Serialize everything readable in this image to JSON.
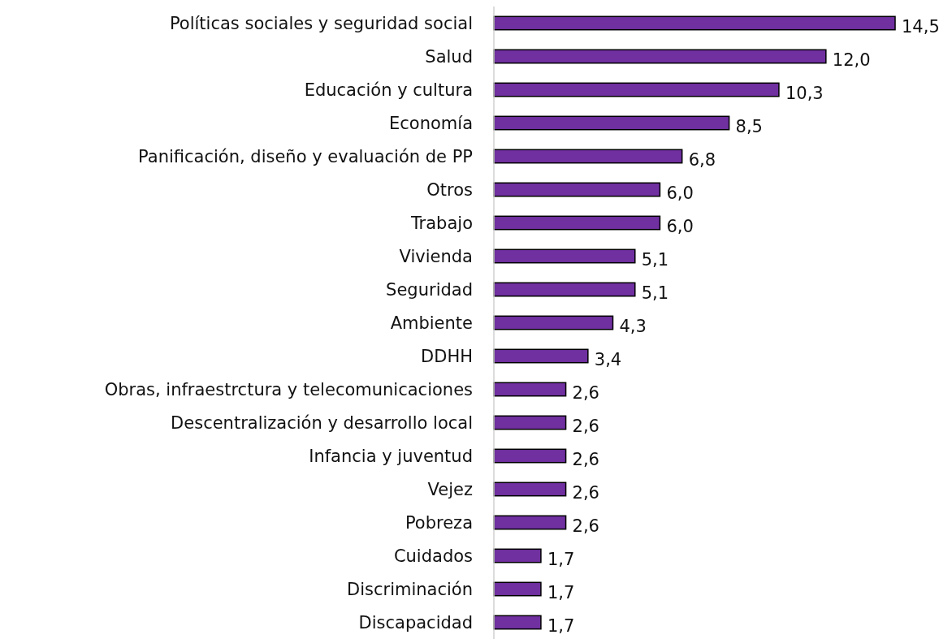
{
  "chart_data": {
    "type": "bar",
    "orientation": "horizontal",
    "categories": [
      "Políticas sociales y seguridad social",
      "Salud",
      "Educación y cultura",
      "Economía",
      "Panificación, diseño y evaluación de PP",
      "Otros",
      "Trabajo",
      "Vivienda",
      "Seguridad",
      "Ambiente",
      "DDHH",
      "Obras, infraestrctura y telecomunicaciones",
      "Descentralización y desarrollo local",
      "Infancia y juventud",
      "Vejez",
      "Pobreza",
      "Cuidados",
      "Discriminación",
      "Discapacidad"
    ],
    "values": [
      14.5,
      12.0,
      10.3,
      8.5,
      6.8,
      6.0,
      6.0,
      5.1,
      5.1,
      4.3,
      3.4,
      2.6,
      2.6,
      2.6,
      2.6,
      2.6,
      1.7,
      1.7,
      1.7
    ],
    "value_labels": [
      "14,5",
      "12,0",
      "10,3",
      "8,5",
      "6,8",
      "6,0",
      "6,0",
      "5,1",
      "5,1",
      "4,3",
      "3,4",
      "2,6",
      "2,6",
      "2,6",
      "2,6",
      "2,6",
      "1,7",
      "1,7",
      "1,7"
    ],
    "color": "#7030a0"
  }
}
